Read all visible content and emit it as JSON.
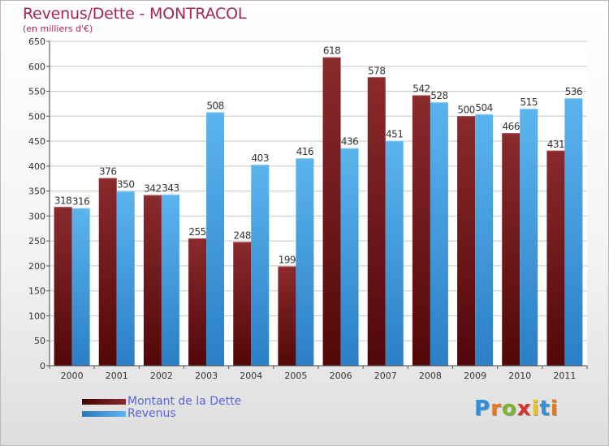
{
  "title": "Revenus/Dette - MONTRACOL",
  "subtitle": "(en milliers d'€)",
  "legend": [
    {
      "label": "Montant de la Dette",
      "color": "#6b1215"
    },
    {
      "label": "Revenus",
      "color": "#3b96d8"
    }
  ],
  "logo": {
    "text": "Proxiti",
    "colors": [
      "#2f8fd8",
      "#e07a1f",
      "#7ab52f",
      "#d8332c",
      "#f0c419",
      "#2f8fd8",
      "#e07a1f"
    ]
  },
  "chart_data": {
    "type": "bar",
    "title": "Revenus/Dette - MONTRACOL",
    "subtitle": "(en milliers d'€)",
    "categories": [
      "2000",
      "2001",
      "2002",
      "2003",
      "2004",
      "2005",
      "2006",
      "2007",
      "2008",
      "2009",
      "2010",
      "2011"
    ],
    "series": [
      {
        "name": "Montant de la Dette",
        "color": "#6b1215",
        "values": [
          318,
          376,
          342,
          255,
          248,
          199,
          618,
          578,
          542,
          500,
          466,
          431
        ]
      },
      {
        "name": "Revenus",
        "color": "#3b96d8",
        "values": [
          316,
          350,
          343,
          508,
          403,
          416,
          436,
          451,
          528,
          504,
          515,
          536
        ]
      }
    ],
    "ylim": [
      0,
      650
    ],
    "yticks": [
      0,
      50,
      100,
      150,
      200,
      250,
      300,
      350,
      400,
      450,
      500,
      550,
      600,
      650
    ],
    "grid": true,
    "legend_position": "bottom-left"
  }
}
